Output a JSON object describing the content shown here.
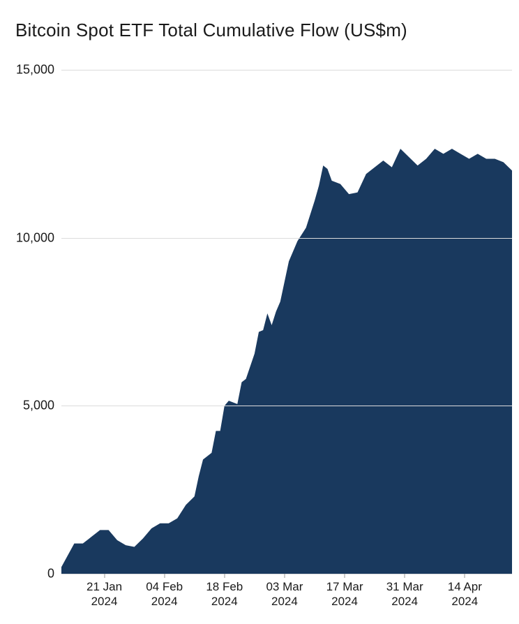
{
  "chart": {
    "type": "area",
    "title": "Bitcoin Spot ETF Total Cumulative Flow (US$m)",
    "title_fontsize": 26,
    "title_color": "#1a1a1a",
    "background_color": "#ffffff",
    "grid_color": "#dcdcdc",
    "tick_color": "#9a9a9a",
    "label_color": "#1a1a1a",
    "label_fontsize": 18,
    "x_label_fontsize": 17,
    "series_color": "#19395e",
    "ylim": [
      0,
      15000
    ],
    "yticks": [
      {
        "value": 0,
        "label": "0"
      },
      {
        "value": 5000,
        "label": "5,000"
      },
      {
        "value": 10000,
        "label": "10,000"
      },
      {
        "value": 15000,
        "label": "15,000"
      }
    ],
    "x_range_days": [
      0,
      105
    ],
    "xticks": [
      {
        "day": 10,
        "line1": "21 Jan",
        "line2": "2024"
      },
      {
        "day": 24,
        "line1": "04 Feb",
        "line2": "2024"
      },
      {
        "day": 38,
        "line1": "18 Feb",
        "line2": "2024"
      },
      {
        "day": 52,
        "line1": "03 Mar",
        "line2": "2024"
      },
      {
        "day": 66,
        "line1": "17 Mar",
        "line2": "2024"
      },
      {
        "day": 80,
        "line1": "31 Mar",
        "line2": "2024"
      },
      {
        "day": 94,
        "line1": "14 Apr",
        "line2": "2024"
      }
    ],
    "data": [
      {
        "day": 0,
        "value": 200
      },
      {
        "day": 3,
        "value": 900
      },
      {
        "day": 5,
        "value": 900
      },
      {
        "day": 7,
        "value": 1100
      },
      {
        "day": 9,
        "value": 1300
      },
      {
        "day": 11,
        "value": 1300
      },
      {
        "day": 13,
        "value": 1000
      },
      {
        "day": 15,
        "value": 850
      },
      {
        "day": 17,
        "value": 800
      },
      {
        "day": 19,
        "value": 1050
      },
      {
        "day": 21,
        "value": 1350
      },
      {
        "day": 23,
        "value": 1500
      },
      {
        "day": 25,
        "value": 1500
      },
      {
        "day": 27,
        "value": 1650
      },
      {
        "day": 29,
        "value": 2050
      },
      {
        "day": 31,
        "value": 2300
      },
      {
        "day": 32,
        "value": 2900
      },
      {
        "day": 33,
        "value": 3400
      },
      {
        "day": 35,
        "value": 3600
      },
      {
        "day": 36,
        "value": 4250
      },
      {
        "day": 37,
        "value": 4250
      },
      {
        "day": 38,
        "value": 5000
      },
      {
        "day": 39,
        "value": 5150
      },
      {
        "day": 41,
        "value": 5050
      },
      {
        "day": 42,
        "value": 5700
      },
      {
        "day": 43,
        "value": 5800
      },
      {
        "day": 45,
        "value": 6550
      },
      {
        "day": 46,
        "value": 7200
      },
      {
        "day": 47,
        "value": 7250
      },
      {
        "day": 48,
        "value": 7750
      },
      {
        "day": 49,
        "value": 7400
      },
      {
        "day": 50,
        "value": 7800
      },
      {
        "day": 51,
        "value": 8100
      },
      {
        "day": 53,
        "value": 9300
      },
      {
        "day": 55,
        "value": 9900
      },
      {
        "day": 57,
        "value": 10300
      },
      {
        "day": 59,
        "value": 11100
      },
      {
        "day": 60,
        "value": 11550
      },
      {
        "day": 61,
        "value": 12150
      },
      {
        "day": 62,
        "value": 12050
      },
      {
        "day": 63,
        "value": 11700
      },
      {
        "day": 65,
        "value": 11600
      },
      {
        "day": 67,
        "value": 11300
      },
      {
        "day": 69,
        "value": 11350
      },
      {
        "day": 71,
        "value": 11900
      },
      {
        "day": 73,
        "value": 12100
      },
      {
        "day": 75,
        "value": 12300
      },
      {
        "day": 77,
        "value": 12100
      },
      {
        "day": 79,
        "value": 12650
      },
      {
        "day": 81,
        "value": 12400
      },
      {
        "day": 83,
        "value": 12150
      },
      {
        "day": 85,
        "value": 12350
      },
      {
        "day": 87,
        "value": 12650
      },
      {
        "day": 89,
        "value": 12500
      },
      {
        "day": 91,
        "value": 12650
      },
      {
        "day": 93,
        "value": 12500
      },
      {
        "day": 95,
        "value": 12350
      },
      {
        "day": 97,
        "value": 12500
      },
      {
        "day": 99,
        "value": 12350
      },
      {
        "day": 101,
        "value": 12350
      },
      {
        "day": 103,
        "value": 12250
      },
      {
        "day": 105,
        "value": 12000
      }
    ]
  }
}
